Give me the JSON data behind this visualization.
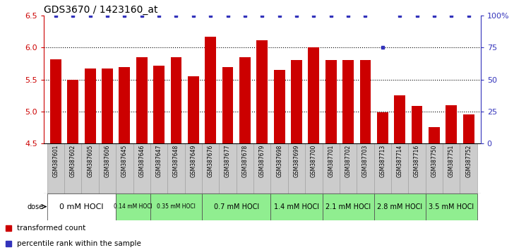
{
  "title": "GDS3670 / 1423160_at",
  "categories": [
    "GSM387601",
    "GSM387602",
    "GSM387605",
    "GSM387606",
    "GSM387645",
    "GSM387646",
    "GSM387647",
    "GSM387648",
    "GSM387649",
    "GSM387676",
    "GSM387677",
    "GSM387678",
    "GSM387679",
    "GSM387698",
    "GSM387699",
    "GSM387700",
    "GSM387701",
    "GSM387702",
    "GSM387703",
    "GSM387713",
    "GSM387714",
    "GSM387716",
    "GSM387750",
    "GSM387751",
    "GSM387752"
  ],
  "bar_values": [
    5.82,
    5.49,
    5.67,
    5.67,
    5.7,
    5.85,
    5.72,
    5.85,
    5.55,
    6.17,
    5.7,
    5.85,
    6.12,
    5.65,
    5.8,
    6.01,
    5.8,
    5.8,
    5.8,
    4.99,
    5.25,
    5.08,
    4.75,
    5.1,
    4.95
  ],
  "percentile_values": [
    100,
    100,
    100,
    100,
    100,
    100,
    100,
    100,
    100,
    100,
    100,
    100,
    100,
    100,
    100,
    100,
    100,
    100,
    100,
    75,
    100,
    100,
    100,
    100,
    100
  ],
  "dose_groups": [
    {
      "label": "0 mM HOCl",
      "start": 0,
      "end": 4,
      "color": "#ffffff",
      "fontsize": 8
    },
    {
      "label": "0.14 mM HOCl",
      "start": 4,
      "end": 6,
      "color": "#90EE90",
      "fontsize": 5.5
    },
    {
      "label": "0.35 mM HOCl",
      "start": 6,
      "end": 9,
      "color": "#90EE90",
      "fontsize": 5.5
    },
    {
      "label": "0.7 mM HOCl",
      "start": 9,
      "end": 13,
      "color": "#90EE90",
      "fontsize": 7
    },
    {
      "label": "1.4 mM HOCl",
      "start": 13,
      "end": 16,
      "color": "#90EE90",
      "fontsize": 7
    },
    {
      "label": "2.1 mM HOCl",
      "start": 16,
      "end": 19,
      "color": "#90EE90",
      "fontsize": 7
    },
    {
      "label": "2.8 mM HOCl",
      "start": 19,
      "end": 22,
      "color": "#90EE90",
      "fontsize": 7
    },
    {
      "label": "3.5 mM HOCl",
      "start": 22,
      "end": 25,
      "color": "#90EE90",
      "fontsize": 7
    }
  ],
  "bar_color": "#cc0000",
  "percentile_color": "#3333bb",
  "ylim": [
    4.5,
    6.5
  ],
  "yticks": [
    4.5,
    5.0,
    5.5,
    6.0,
    6.5
  ],
  "right_ytick_labels": [
    "0",
    "25",
    "50",
    "75",
    "100%"
  ],
  "right_yticks": [
    0,
    25,
    50,
    75,
    100
  ],
  "background_color": "#ffffff",
  "title_fontsize": 10,
  "bar_width": 0.65
}
